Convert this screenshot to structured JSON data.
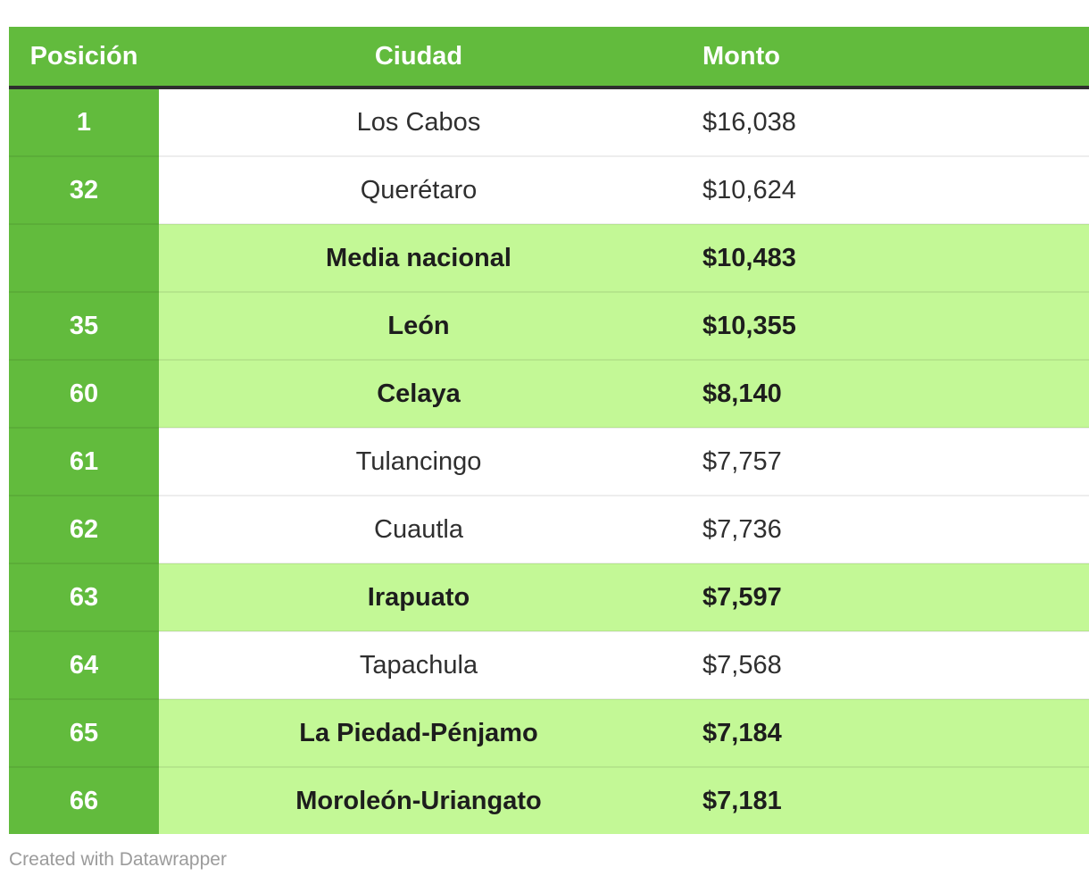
{
  "chart_data": {
    "type": "table",
    "title": "",
    "columns": [
      {
        "key": "posicion",
        "label": "Posición",
        "align": "center"
      },
      {
        "key": "ciudad",
        "label": "Ciudad",
        "align": "center"
      },
      {
        "key": "monto",
        "label": "Monto",
        "align": "left"
      }
    ],
    "rows": [
      {
        "posicion": "1",
        "ciudad": "Los Cabos",
        "monto": "$16,038",
        "monto_value": 16038,
        "highlight": false
      },
      {
        "posicion": "32",
        "ciudad": "Querétaro",
        "monto": "$10,624",
        "monto_value": 10624,
        "highlight": false
      },
      {
        "posicion": "",
        "ciudad": "Media nacional",
        "monto": "$10,483",
        "monto_value": 10483,
        "highlight": true
      },
      {
        "posicion": "35",
        "ciudad": "León",
        "monto": "$10,355",
        "monto_value": 10355,
        "highlight": true
      },
      {
        "posicion": "60",
        "ciudad": "Celaya",
        "monto": "$8,140",
        "monto_value": 8140,
        "highlight": true
      },
      {
        "posicion": "61",
        "ciudad": "Tulancingo",
        "monto": "$7,757",
        "monto_value": 7757,
        "highlight": false
      },
      {
        "posicion": "62",
        "ciudad": "Cuautla",
        "monto": "$7,736",
        "monto_value": 7736,
        "highlight": false
      },
      {
        "posicion": "63",
        "ciudad": "Irapuato",
        "monto": "$7,597",
        "monto_value": 7597,
        "highlight": true
      },
      {
        "posicion": "64",
        "ciudad": "Tapachula",
        "monto": "$7,568",
        "monto_value": 7568,
        "highlight": false
      },
      {
        "posicion": "65",
        "ciudad": "La Piedad-Pénjamo",
        "monto": "$7,184",
        "monto_value": 7184,
        "highlight": true
      },
      {
        "posicion": "66",
        "ciudad": "Moroleón-Uriangato",
        "monto": "$7,181",
        "monto_value": 7181,
        "highlight": true
      }
    ],
    "layout": {
      "grid": "horizontal-row-separators",
      "header_background": "#62bb3d",
      "highlight_row_background": "#c3f896",
      "position_column_background": "#62bb3d",
      "header_bottom_border": "#2e2e2e"
    }
  },
  "colors": {
    "header_green": "#62bb3d",
    "highlight_green": "#c3f896",
    "header_border_dark": "#2e2e2e",
    "body_text": "#2f2f2f",
    "bold_text": "#1d1d1d",
    "attribution_gray": "#9b9b9b"
  },
  "footer": {
    "attribution": "Created with Datawrapper"
  }
}
